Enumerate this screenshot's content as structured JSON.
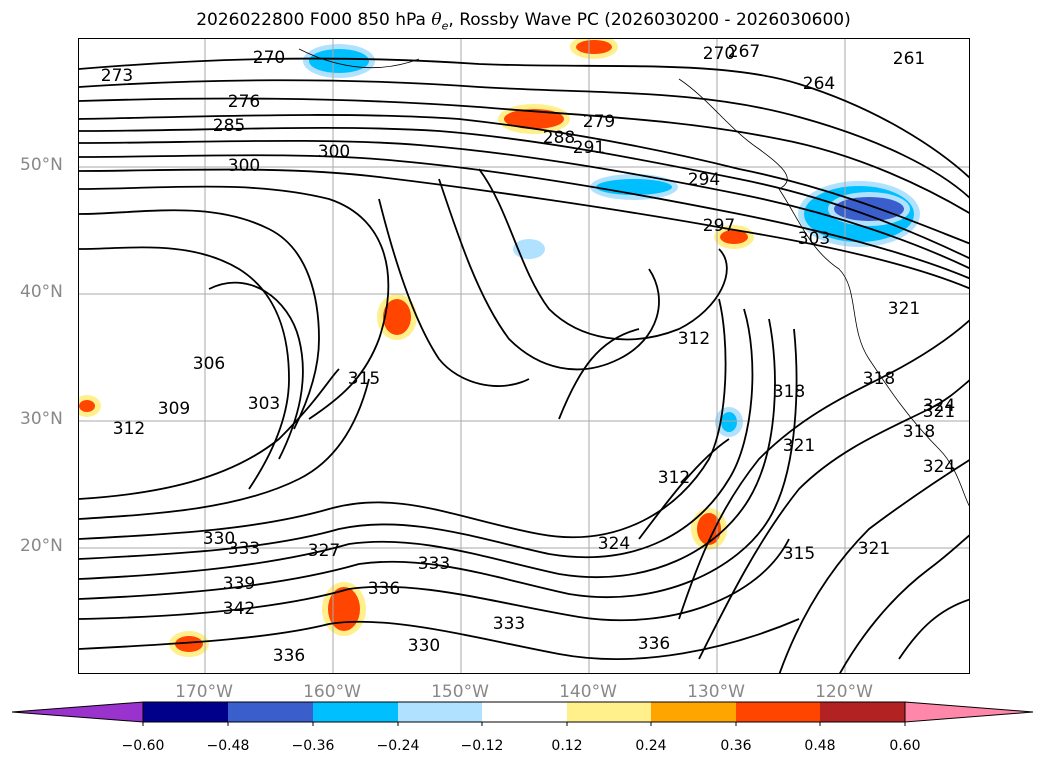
{
  "title": {
    "prefix": "2026022800 F000 850 hPa ",
    "symbol": "θ",
    "subscript": "e",
    "suffix": ", Rossby Wave PC (2026030200 - 2026030600)"
  },
  "map": {
    "lat_ticks": [
      {
        "label": "50°N",
        "lat": 50
      },
      {
        "label": "40°N",
        "lat": 40
      },
      {
        "label": "30°N",
        "lat": 30
      },
      {
        "label": "20°N",
        "lat": 20
      }
    ],
    "lon_ticks": [
      {
        "label": "170°W",
        "lon": -170
      },
      {
        "label": "160°W",
        "lon": -160
      },
      {
        "label": "150°W",
        "lon": -150
      },
      {
        "label": "140°W",
        "lon": -140
      },
      {
        "label": "130°W",
        "lon": -130
      },
      {
        "label": "120°W",
        "lon": -120
      }
    ],
    "contour_labels": [
      "273",
      "270",
      "276",
      "285",
      "300",
      "300",
      "279",
      "288",
      "291",
      "294",
      "297",
      "303",
      "306",
      "309",
      "312",
      "303",
      "315",
      "312",
      "318",
      "321",
      "321",
      "318",
      "324",
      "321",
      "312",
      "330",
      "333",
      "327",
      "324",
      "333",
      "336",
      "339",
      "342",
      "336",
      "330",
      "333",
      "336",
      "315",
      "318",
      "321",
      "324",
      "261",
      "264",
      "267",
      "270"
    ]
  },
  "colorbar": {
    "levels": [
      "−0.60",
      "−0.48",
      "−0.36",
      "−0.24",
      "−0.12",
      "0.12",
      "0.24",
      "0.36",
      "0.48",
      "0.60"
    ],
    "colors": [
      "#9a32cd",
      "#00008b",
      "#3a5fcd",
      "#00bfff",
      "#b0e2ff",
      "#ffffff",
      "#fff08c",
      "#ffa500",
      "#ff4500",
      "#b22222",
      "#ff88aa"
    ]
  }
}
